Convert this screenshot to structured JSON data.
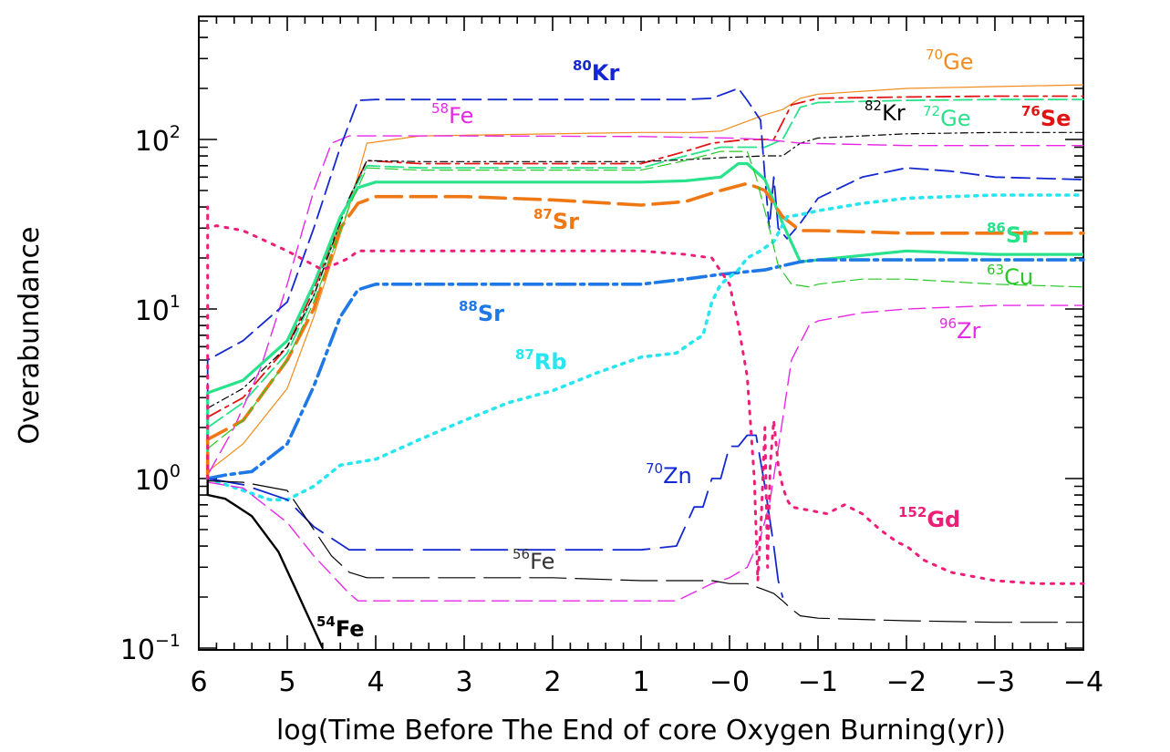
{
  "chart_data": {
    "type": "line",
    "xlabel": "log(Time Before The End of core Oxygen Burning(yr))",
    "ylabel": "Overabundance",
    "xlim": [
      6,
      -4
    ],
    "ylim": [
      0.1,
      700
    ],
    "y_scale": "log",
    "x_ticks": [
      {
        "v": 6,
        "label": "6"
      },
      {
        "v": 5,
        "label": "5"
      },
      {
        "v": 4,
        "label": "4"
      },
      {
        "v": 3,
        "label": "3"
      },
      {
        "v": 2,
        "label": "2"
      },
      {
        "v": 1,
        "label": "1"
      },
      {
        "v": 0,
        "label": "−0"
      },
      {
        "v": -1,
        "label": "−1"
      },
      {
        "v": -2,
        "label": "−2"
      },
      {
        "v": -3,
        "label": "−3"
      },
      {
        "v": -4,
        "label": "−4"
      }
    ],
    "y_ticks": [
      {
        "v": 0.1,
        "base": "10",
        "exp": "−1"
      },
      {
        "v": 1,
        "base": "10",
        "exp": "0"
      },
      {
        "v": 10,
        "base": "10",
        "exp": "1"
      },
      {
        "v": 100,
        "base": "10",
        "exp": "2"
      }
    ],
    "grid": false,
    "series": [
      {
        "name": "70Ge",
        "color": "#f08c1e",
        "width": 1.2,
        "dash": "",
        "x": [
          5.9,
          5.5,
          5.0,
          4.7,
          4.3,
          4.1,
          3.5,
          1.0,
          0.4,
          0.1,
          -0.4,
          -0.6,
          -0.8,
          -1.0,
          -2.0,
          -3.0,
          -4.0
        ],
        "y": [
          1.1,
          1.6,
          3.4,
          9.0,
          40,
          95,
          105,
          110,
          110,
          112,
          140,
          150,
          175,
          185,
          200,
          205,
          210
        ]
      },
      {
        "name": "76Se",
        "color": "#e01414",
        "width": 1.8,
        "dash": "16 6 4 6",
        "x": [
          5.9,
          5.5,
          5.0,
          4.7,
          4.3,
          4.1,
          3.5,
          1.0,
          0.5,
          0.2,
          -0.2,
          -0.5,
          -0.7,
          -1.0,
          -2.0,
          -3.0,
          -4.0
        ],
        "y": [
          2.3,
          3.0,
          6.0,
          13,
          45,
          75,
          72,
          72,
          85,
          95,
          100,
          100,
          160,
          175,
          178,
          180,
          180
        ]
      },
      {
        "name": "72Ge",
        "color": "#28e28c",
        "width": 1.8,
        "dash": "20 6",
        "x": [
          5.9,
          5.5,
          5.0,
          4.7,
          4.3,
          4.1,
          3.5,
          1.0,
          0.5,
          0.1,
          -0.4,
          -0.6,
          -0.8,
          -1.0,
          -2.0,
          -3.0,
          -4.0
        ],
        "y": [
          2.0,
          2.8,
          5.5,
          12,
          45,
          70,
          68,
          68,
          80,
          90,
          90,
          100,
          155,
          165,
          170,
          172,
          172
        ]
      },
      {
        "name": "82Kr",
        "color": "#000000",
        "width": 1.2,
        "dash": "8 4 2 4",
        "x": [
          5.9,
          5.5,
          5.0,
          4.7,
          4.3,
          4.1,
          3.5,
          1.0,
          0.5,
          0.1,
          -0.4,
          -0.6,
          -0.8,
          -1.0,
          -2.0,
          -3.0,
          -4.0
        ],
        "y": [
          2.6,
          3.4,
          6.0,
          12,
          45,
          75,
          74,
          74,
          76,
          78,
          80,
          80,
          95,
          102,
          108,
          110,
          110
        ]
      },
      {
        "name": "58Fe",
        "color": "#e628e6",
        "width": 1.4,
        "dash": "20 8",
        "x": [
          5.9,
          5.6,
          5.3,
          5.0,
          4.7,
          4.5,
          4.3,
          4.0,
          3.0,
          1.0,
          0.0,
          -0.4,
          -0.8,
          -2.0,
          -3.0,
          -4.0
        ],
        "y": [
          1.05,
          2.0,
          4.5,
          14,
          50,
          95,
          105,
          105,
          105,
          104,
          102,
          100,
          95,
          92,
          92,
          92
        ]
      },
      {
        "name": "80Kr",
        "color": "#1428d2",
        "width": 1.8,
        "dash": "20 8",
        "x": [
          5.9,
          5.9,
          5.5,
          5.0,
          4.7,
          4.4,
          4.2,
          4.0,
          3.0,
          1.0,
          0.5,
          0.2,
          -0.1,
          -0.2,
          -0.35,
          -0.4,
          -0.45,
          -0.5,
          -0.55,
          -0.65,
          -0.8,
          -1.0,
          -1.5,
          -2.0,
          -2.5,
          -3.0,
          -4.0
        ],
        "y": [
          1.0,
          5.0,
          6.5,
          11,
          30,
          90,
          170,
          172,
          172,
          172,
          172,
          175,
          200,
          170,
          130,
          60,
          30,
          60,
          30,
          26,
          32,
          45,
          60,
          68,
          65,
          60,
          58
        ]
      },
      {
        "name": "86Sr",
        "color": "#28e28c",
        "width": 3.2,
        "dash": "",
        "x": [
          5.9,
          5.9,
          5.5,
          5.0,
          4.7,
          4.4,
          4.2,
          4.0,
          3.0,
          1.0,
          0.5,
          0.1,
          -0.1,
          -0.2,
          -0.4,
          -0.6,
          -0.8,
          -1.0,
          -2.0,
          -3.0,
          -4.0
        ],
        "y": [
          1.0,
          3.2,
          3.8,
          6.5,
          14,
          35,
          52,
          56,
          56,
          56,
          57,
          60,
          72,
          72,
          58,
          32,
          19,
          19.5,
          22,
          21,
          21
        ]
      },
      {
        "name": "87Sr",
        "color": "#f07814",
        "width": 3.6,
        "dash": "28 10",
        "x": [
          5.9,
          5.9,
          5.5,
          5.0,
          4.7,
          4.4,
          4.2,
          4.0,
          3.0,
          2.0,
          1.0,
          0.5,
          0.1,
          -0.2,
          -0.4,
          -0.6,
          -0.8,
          -1.0,
          -2.0,
          -3.0,
          -4.0
        ],
        "y": [
          1.0,
          1.7,
          2.2,
          5.0,
          10,
          30,
          42,
          46,
          46,
          44,
          41,
          43,
          50,
          55,
          50,
          35,
          29,
          29,
          28,
          28,
          28
        ]
      },
      {
        "name": "88Sr",
        "color": "#1e78e6",
        "width": 3.6,
        "dash": "20 6 4 6",
        "x": [
          5.9,
          5.7,
          5.4,
          5.0,
          4.7,
          4.4,
          4.2,
          4.0,
          3.0,
          2.0,
          1.0,
          0.5,
          0.1,
          -0.4,
          -0.6,
          -0.8,
          -1.0,
          -2.0,
          -3.0,
          -4.0
        ],
        "y": [
          1.0,
          1.05,
          1.1,
          1.6,
          3.5,
          9.0,
          13,
          14,
          14,
          14,
          14,
          15,
          16,
          17,
          18,
          19,
          19.5,
          19.5,
          19.5,
          19.5
        ]
      },
      {
        "name": "87Rb",
        "color": "#28e6f0",
        "width": 3.6,
        "dash": "3 7",
        "x": [
          5.9,
          5.5,
          5.2,
          5.0,
          4.7,
          4.4,
          4.2,
          4.0,
          3.5,
          3.0,
          2.5,
          2.0,
          1.5,
          1.0,
          0.6,
          0.4,
          0.3,
          0.2,
          0.1,
          -0.1,
          -0.2,
          -0.35,
          -0.45,
          -0.5,
          -0.55,
          -0.65,
          -0.8,
          -1.0,
          -1.5,
          -2.0,
          -2.5,
          -3.0,
          -4.0
        ],
        "y": [
          1.0,
          0.85,
          0.75,
          0.75,
          0.9,
          1.2,
          1.25,
          1.3,
          1.7,
          2.2,
          2.8,
          3.3,
          4.2,
          5.2,
          5.5,
          6.5,
          7.0,
          11,
          14,
          17,
          20,
          22,
          24,
          25,
          28,
          35,
          36,
          38,
          42,
          45,
          46,
          47,
          47
        ]
      },
      {
        "name": "63Cu",
        "color": "#28c828",
        "width": 1.2,
        "dash": "14 6",
        "x": [
          5.9,
          5.5,
          5.0,
          4.7,
          4.3,
          4.1,
          3.5,
          1.0,
          0.5,
          0.1,
          -0.2,
          -0.3,
          -0.45,
          -0.55,
          -0.7,
          -0.9,
          -1.0,
          -1.5,
          -2.0,
          -3.0,
          -4.0
        ],
        "y": [
          1.5,
          2.2,
          5.0,
          11,
          40,
          68,
          66,
          66,
          75,
          85,
          85,
          60,
          30,
          18,
          14,
          13.5,
          14,
          15,
          15,
          14,
          13.5
        ]
      },
      {
        "name": "96Zr",
        "color": "#e628e6",
        "width": 1.4,
        "dash": "18 8",
        "x": [
          5.9,
          5.5,
          5.0,
          4.7,
          4.3,
          4.2,
          4.0,
          3.0,
          2.0,
          1.0,
          0.6,
          0.2,
          0.0,
          -0.2,
          -0.35,
          -0.45,
          -0.55,
          -0.7,
          -0.9,
          -1.0,
          -1.5,
          -2.0,
          -3.0,
          -4.0
        ],
        "y": [
          0.95,
          0.88,
          0.55,
          0.35,
          0.21,
          0.19,
          0.19,
          0.19,
          0.19,
          0.19,
          0.19,
          0.24,
          0.26,
          0.3,
          0.45,
          0.7,
          1.5,
          5.0,
          8.0,
          8.5,
          9.5,
          10,
          10.5,
          10.5
        ]
      },
      {
        "name": "70Zn",
        "color": "#1428d2",
        "width": 1.8,
        "dash": "40 12",
        "x": [
          5.9,
          5.5,
          5.0,
          4.7,
          4.3,
          4.2,
          4.0,
          3.0,
          2.0,
          1.0,
          0.6,
          0.4,
          0.3,
          0.2,
          0.1,
          0.0,
          -0.1,
          -0.2,
          -0.3,
          -0.4,
          -0.5,
          -0.55,
          -0.6
        ],
        "y": [
          1.0,
          0.92,
          0.75,
          0.52,
          0.38,
          0.38,
          0.38,
          0.38,
          0.38,
          0.38,
          0.4,
          0.68,
          0.68,
          1.0,
          1.0,
          1.55,
          1.55,
          1.8,
          1.8,
          0.9,
          0.4,
          0.25,
          0.2
        ]
      },
      {
        "name": "56Fe",
        "color": "#000000",
        "width": 1.2,
        "dash": "40 10",
        "x": [
          5.9,
          5.5,
          5.0,
          4.7,
          4.5,
          4.3,
          4.1,
          3.5,
          3.0,
          2.0,
          1.0,
          0.5,
          0.2,
          0.0,
          -0.2,
          -0.4,
          -0.5,
          -0.6,
          -0.7,
          -0.8,
          -1.0,
          -2.0,
          -3.0,
          -4.0
        ],
        "y": [
          0.97,
          0.95,
          0.85,
          0.5,
          0.35,
          0.28,
          0.26,
          0.26,
          0.26,
          0.26,
          0.25,
          0.25,
          0.25,
          0.24,
          0.24,
          0.22,
          0.21,
          0.19,
          0.17,
          0.155,
          0.15,
          0.145,
          0.142,
          0.142
        ]
      },
      {
        "name": "54Fe",
        "color": "#000000",
        "width": 2.4,
        "dash": "",
        "x": [
          5.9,
          5.9,
          5.7,
          5.4,
          5.1,
          4.9,
          4.7,
          4.6
        ],
        "y": [
          1.0,
          0.8,
          0.76,
          0.6,
          0.37,
          0.22,
          0.13,
          0.1
        ]
      },
      {
        "name": "152Gd",
        "color": "#ee1e78",
        "width": 3.0,
        "dash": "3 8",
        "x": [
          5.9,
          5.9,
          5.9,
          5.8,
          5.5,
          5.0,
          4.6,
          4.3,
          4.2,
          4.0,
          3.0,
          2.0,
          1.0,
          0.5,
          0.2,
          0.0,
          -0.1,
          -0.2,
          -0.28,
          -0.32,
          -0.36,
          -0.4,
          -0.43,
          -0.46,
          -0.5,
          -0.55,
          -0.6,
          -0.65,
          -0.7,
          -0.9,
          -1.1,
          -1.3,
          -1.5,
          -1.7,
          -1.9,
          -2.0,
          -2.2,
          -2.5,
          -3.0,
          -3.5,
          -4.0
        ],
        "y": [
          1.0,
          40,
          30,
          31,
          29,
          22,
          17,
          20,
          22,
          22,
          22,
          22,
          22,
          21,
          20,
          14,
          8,
          4,
          1.0,
          0.25,
          0.6,
          2.0,
          0.3,
          1.2,
          2.2,
          1.2,
          0.9,
          0.75,
          0.68,
          0.65,
          0.62,
          0.7,
          0.62,
          0.5,
          0.42,
          0.4,
          0.33,
          0.28,
          0.25,
          0.24,
          0.24
        ]
      }
    ]
  },
  "annotations": [
    {
      "id": "ge70",
      "sup": "70",
      "text": "Ge",
      "color": "#f08c1e",
      "bold": false
    },
    {
      "id": "kr80",
      "sup": "80",
      "text": "Kr",
      "color": "#1428d2",
      "bold": true
    },
    {
      "id": "fe58",
      "sup": "58",
      "text": "Fe",
      "color": "#e628e6",
      "bold": false
    },
    {
      "id": "kr82",
      "sup": "82",
      "text": "Kr",
      "color": "#000000",
      "bold": false
    },
    {
      "id": "ge72",
      "sup": "72",
      "text": "Ge",
      "color": "#28e28c",
      "bold": false
    },
    {
      "id": "se76",
      "sup": "76",
      "text": "Se",
      "color": "#e01414",
      "bold": true
    },
    {
      "id": "sr87",
      "sup": "87",
      "text": "Sr",
      "color": "#f07814",
      "bold": true
    },
    {
      "id": "sr86",
      "sup": "86",
      "text": "Sr",
      "color": "#28e28c",
      "bold": true
    },
    {
      "id": "cu63",
      "sup": "63",
      "text": "Cu",
      "color": "#28c828",
      "bold": false
    },
    {
      "id": "sr88",
      "sup": "88",
      "text": "Sr",
      "color": "#1e78e6",
      "bold": true
    },
    {
      "id": "zr96",
      "sup": "96",
      "text": "Zr",
      "color": "#e628e6",
      "bold": false
    },
    {
      "id": "rb87",
      "sup": "87",
      "text": "Rb",
      "color": "#28e6f0",
      "bold": true
    },
    {
      "id": "zn70",
      "sup": "70",
      "text": "Zn",
      "color": "#1428d2",
      "bold": false
    },
    {
      "id": "fe56",
      "sup": "56",
      "text": "Fe",
      "color": "#333333",
      "bold": false
    },
    {
      "id": "gd152",
      "sup": "152",
      "text": "Gd",
      "color": "#ee1e78",
      "bold": true
    },
    {
      "id": "fe54",
      "sup": "54",
      "text": "Fe",
      "color": "#000000",
      "bold": true
    }
  ]
}
